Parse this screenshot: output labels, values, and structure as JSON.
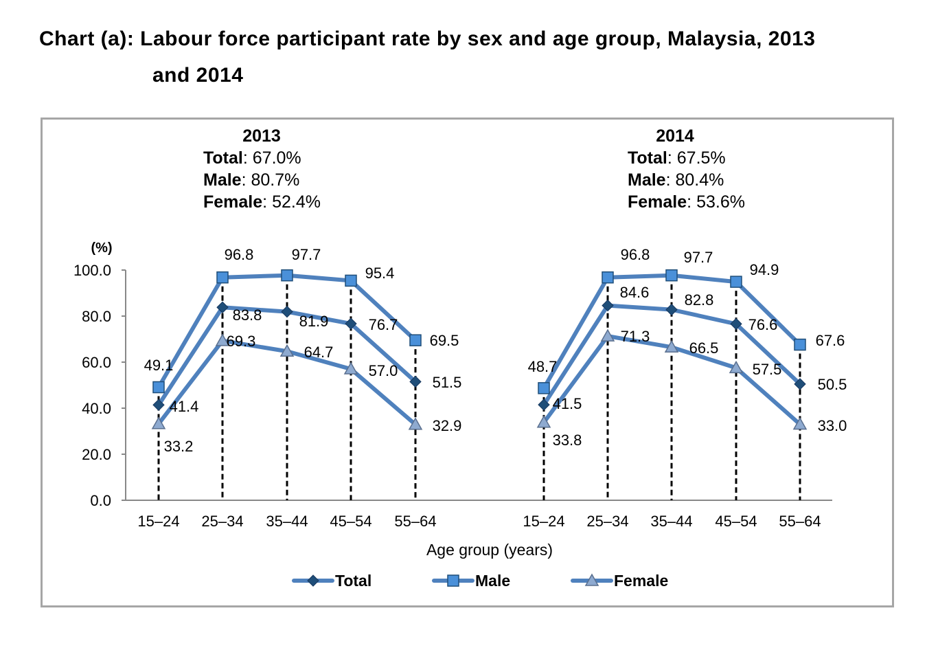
{
  "chart_data": {
    "type": "line",
    "title": "Chart (a): Labour force participant rate by sex and age group, Malaysia, 2013 and 2014",
    "title_line1": "Chart (a): Labour force participant rate by sex and age group, Malaysia, 2013",
    "title_line2": "and 2014",
    "xlabel": "Age group (years)",
    "ylabel": "(%)",
    "ylim": [
      0,
      100
    ],
    "yticks": [
      "0.0",
      "20.0",
      "40.0",
      "60.0",
      "80.0",
      "100.0"
    ],
    "categories": [
      "15–24",
      "25–34",
      "35–44",
      "45–54",
      "55–64"
    ],
    "legend": [
      "Total",
      "Male",
      "Female"
    ],
    "legend_position": "bottom",
    "line_color": "#4f81bd",
    "panels": [
      {
        "year": "2013",
        "summary": {
          "total_label": "Total",
          "total": ": 67.0%",
          "male_label": "Male",
          "male": ": 80.7%",
          "female_label": "Female",
          "female": ": 52.4%"
        },
        "series": [
          {
            "name": "Total",
            "values": [
              41.4,
              83.8,
              81.9,
              76.7,
              51.5
            ]
          },
          {
            "name": "Male",
            "values": [
              49.1,
              96.8,
              97.7,
              95.4,
              69.5
            ]
          },
          {
            "name": "Female",
            "values": [
              33.2,
              69.3,
              64.7,
              57.0,
              32.9
            ]
          }
        ]
      },
      {
        "year": "2014",
        "summary": {
          "total_label": "Total",
          "total": ": 67.5%",
          "male_label": "Male",
          "male": ": 80.4%",
          "female_label": "Female",
          "female": ": 53.6%"
        },
        "series": [
          {
            "name": "Total",
            "values": [
              41.5,
              84.6,
              82.8,
              76.6,
              50.5
            ]
          },
          {
            "name": "Male",
            "values": [
              48.7,
              96.8,
              97.7,
              94.9,
              67.6
            ]
          },
          {
            "name": "Female",
            "values": [
              33.8,
              71.3,
              66.5,
              57.5,
              33.0
            ]
          }
        ]
      }
    ]
  }
}
